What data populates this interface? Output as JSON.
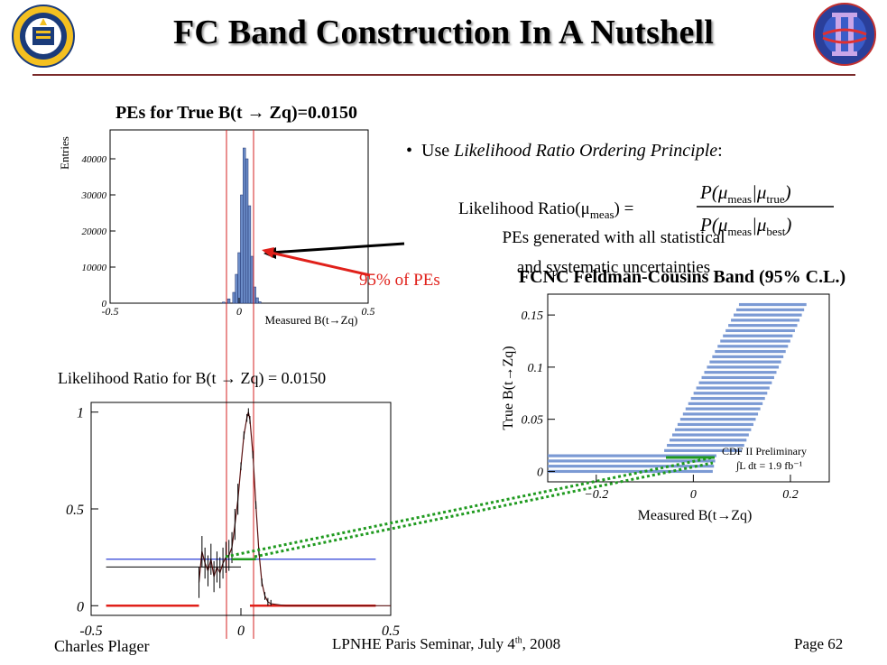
{
  "title": "FC Band Construction In A Nutshell",
  "bullet": {
    "prefix": "Use ",
    "italic": "Likelihood Ratio Ordering Principle",
    "suffix": ":"
  },
  "formula": {
    "lhs": "Likelihood Ratio(μ",
    "lhs_sub": "meas",
    "lhs_end": ") =",
    "num_a": "P(μ",
    "num_a_sub": "meas",
    "num_b": "|μ",
    "num_b_sub": "true",
    "den_a": "P(μ",
    "den_a_sub": "meas",
    "den_b": "|μ",
    "den_b_sub": "best"
  },
  "pe_note": {
    "line1": "PEs generated with all statistical",
    "line2": "and systematic uncertainties"
  },
  "pe_percent_label": "95% of PEs",
  "lr_caption": "Likelihood Ratio for B(t → Zq) = 0.0150",
  "footer": {
    "author": "Charles Plager",
    "seminar": "LPNHE Paris Seminar, July 4",
    "seminar_sup": "th",
    "seminar_end": ", 2008",
    "page": "Page 62"
  },
  "logos": {
    "left": "university-seal-logo",
    "right": "cdf-ii-logo"
  },
  "colors": {
    "accent_red": "#e0201a",
    "band_blue": "#7b9ad4",
    "hist_blue": "#6b8cc8",
    "dotted_green": "#1f9a1f",
    "line_blue": "#2b3fd6"
  },
  "chart_data": [
    {
      "type": "bar",
      "title": "PEs for True B(t → Zq)=0.0150",
      "xlabel": "Measured B(t→Zq)",
      "ylabel": "Entries",
      "xlim": [
        -0.5,
        0.5
      ],
      "ylim": [
        0,
        48000
      ],
      "x_ticks": [
        "-0.5",
        "0",
        "0.5"
      ],
      "y_ticks": [
        "0",
        "10000",
        "20000",
        "30000",
        "40000"
      ],
      "x": [
        -0.06,
        -0.04,
        -0.02,
        -0.01,
        0.0,
        0.01,
        0.02,
        0.03,
        0.04,
        0.05,
        0.06,
        0.07,
        0.08
      ],
      "values": [
        300,
        1200,
        3000,
        8000,
        14000,
        30000,
        43000,
        40000,
        27000,
        13000,
        4500,
        1500,
        400
      ]
    },
    {
      "type": "line",
      "title": "Likelihood Ratio for B(t → Zq) = 0.0150",
      "xlabel": "",
      "ylabel": "",
      "xlim": [
        -0.5,
        0.5
      ],
      "ylim": [
        -0.05,
        1.05
      ],
      "x_ticks": [
        "-0.5",
        "0",
        "0.5"
      ],
      "y_ticks": [
        "0",
        "0.5",
        "1"
      ],
      "series": [
        {
          "x": [
            -0.14,
            -0.13,
            -0.12,
            -0.11,
            -0.1,
            -0.09,
            -0.08,
            -0.07,
            -0.06,
            -0.05,
            -0.04,
            -0.03,
            -0.02,
            -0.01,
            0.0,
            0.01,
            0.02,
            0.025,
            0.03,
            0.04,
            0.05,
            0.06,
            0.07,
            0.08,
            0.09,
            0.1,
            0.15,
            0.2,
            0.3,
            0.4,
            0.5
          ],
          "values": [
            0.12,
            0.28,
            0.22,
            0.18,
            0.24,
            0.15,
            0.2,
            0.17,
            0.22,
            0.25,
            0.26,
            0.3,
            0.42,
            0.55,
            0.72,
            0.88,
            0.97,
            1.0,
            0.96,
            0.78,
            0.52,
            0.28,
            0.12,
            0.05,
            0.02,
            0.01,
            0.0,
            0.0,
            0.0,
            0.0,
            0.0
          ]
        }
      ],
      "horizontal_lines": [
        0.24,
        0.2
      ]
    },
    {
      "type": "bar",
      "title": "FCNC Feldman-Cousins Band (95% C.L.)",
      "xlabel": "Measured B(t→Zq)",
      "ylabel": "True B(t→Zq)",
      "xlim": [
        -0.3,
        0.28
      ],
      "ylim": [
        -0.01,
        0.17
      ],
      "x_ticks": [
        "−0.2",
        "0",
        "0.2"
      ],
      "y_ticks": [
        "0",
        "0.05",
        "0.1",
        "0.15"
      ],
      "annotations": [
        "CDF II Preliminary",
        "∫L dt = 1.9 fb⁻¹"
      ],
      "band": {
        "true_from": 0.0,
        "true_to": 0.16,
        "step": 0.005
      }
    }
  ]
}
